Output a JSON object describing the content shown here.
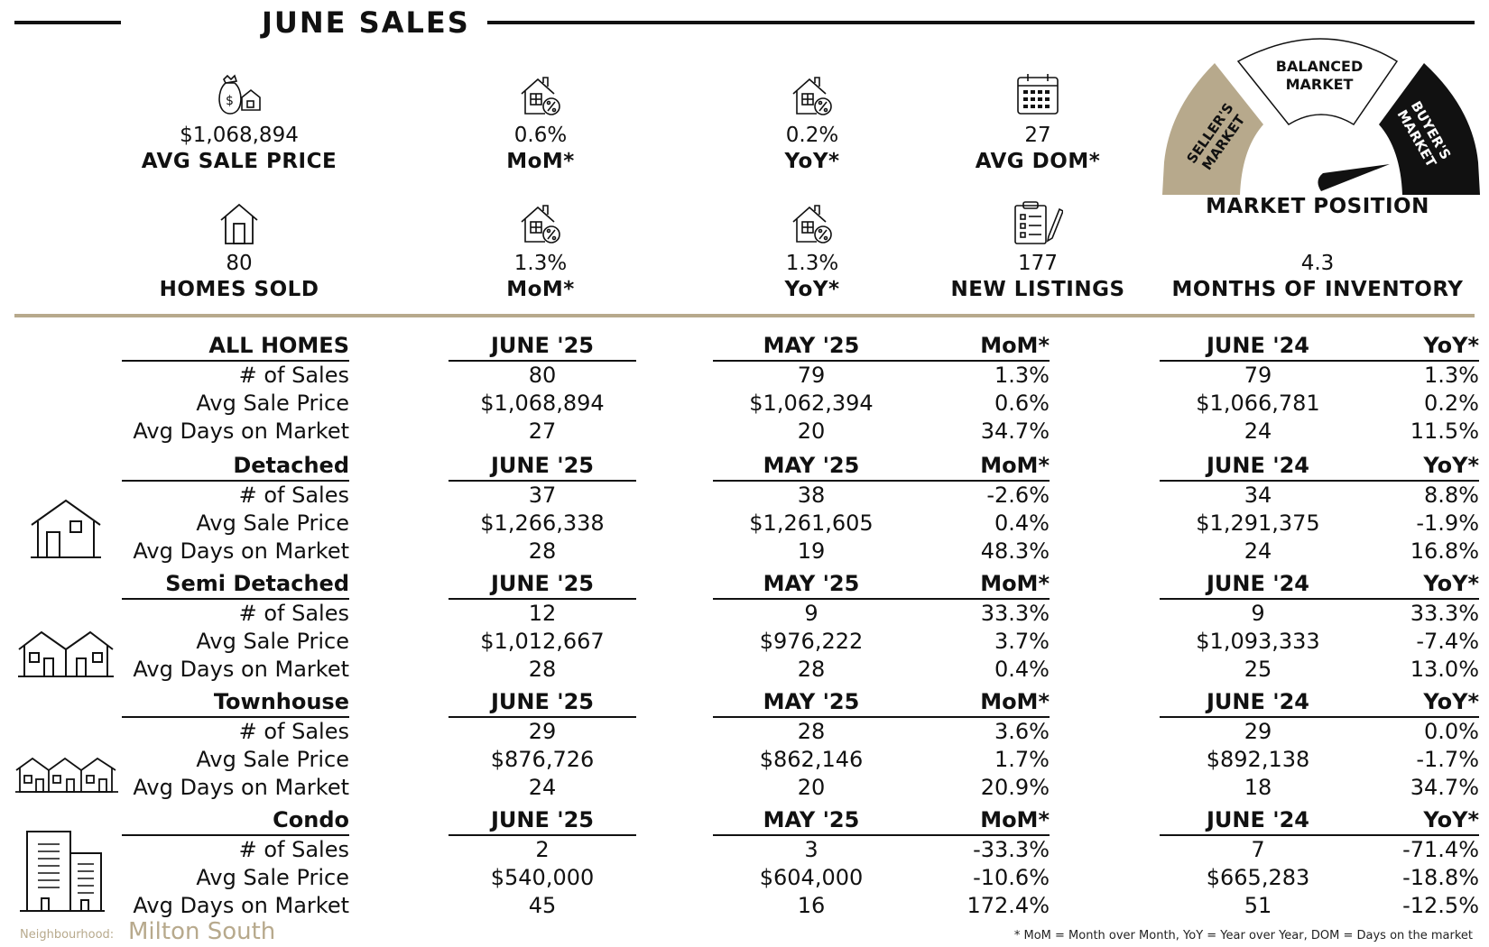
{
  "header": {
    "title": "JUNE SALES"
  },
  "kpis": {
    "avg_sale_price": {
      "value": "$1,068,894",
      "label": "AVG SALE PRICE"
    },
    "price_mom": {
      "value": "0.6%",
      "label": "MoM*"
    },
    "price_yoy": {
      "value": "0.2%",
      "label": "YoY*"
    },
    "avg_dom": {
      "value": "27",
      "label": "AVG DOM*"
    },
    "homes_sold": {
      "value": "80",
      "label": "HOMES SOLD"
    },
    "sold_mom": {
      "value": "1.3%",
      "label": "MoM*"
    },
    "sold_yoy": {
      "value": "1.3%",
      "label": "YoY*"
    },
    "new_listings": {
      "value": "177",
      "label": "NEW LISTINGS"
    },
    "months_inventory": {
      "value": "4.3",
      "label": "MONTHS OF INVENTORY"
    }
  },
  "gauge": {
    "title": "MARKET POSITION",
    "sellers": "SELLER'S MARKET",
    "sellers_l1": "SELLER'S",
    "sellers_l2": "MARKET",
    "balanced_l1": "BALANCED",
    "balanced_l2": "MARKET",
    "buyers_l1": "BUYER'S",
    "buyers_l2": "MARKET",
    "colors": {
      "sellers": "#b7a98c",
      "buyers": "#111111",
      "balanced": "#ffffff"
    }
  },
  "table": {
    "col_headers": {
      "cur": "JUNE '25",
      "prev": "MAY '25",
      "mom": "MoM*",
      "last_year": "JUNE '24",
      "yoy": "YoY*"
    },
    "row_labels": [
      "# of Sales",
      "Avg Sale Price",
      "Avg Days on Market"
    ],
    "sections": [
      {
        "name": "ALL HOMES",
        "icon": "none",
        "rows": [
          [
            "80",
            "79",
            "1.3%",
            "79",
            "1.3%"
          ],
          [
            "$1,068,894",
            "$1,062,394",
            "0.6%",
            "$1,066,781",
            "0.2%"
          ],
          [
            "27",
            "20",
            "34.7%",
            "24",
            "11.5%"
          ]
        ]
      },
      {
        "name": "Detached",
        "icon": "detached-house-icon",
        "rows": [
          [
            "37",
            "38",
            "-2.6%",
            "34",
            "8.8%"
          ],
          [
            "$1,266,338",
            "$1,261,605",
            "0.4%",
            "$1,291,375",
            "-1.9%"
          ],
          [
            "28",
            "19",
            "48.3%",
            "24",
            "16.8%"
          ]
        ]
      },
      {
        "name": "Semi Detached",
        "icon": "semi-detached-house-icon",
        "rows": [
          [
            "12",
            "9",
            "33.3%",
            "9",
            "33.3%"
          ],
          [
            "$1,012,667",
            "$976,222",
            "3.7%",
            "$1,093,333",
            "-7.4%"
          ],
          [
            "28",
            "28",
            "0.4%",
            "25",
            "13.0%"
          ]
        ]
      },
      {
        "name": "Townhouse",
        "icon": "townhouse-icon",
        "rows": [
          [
            "29",
            "28",
            "3.6%",
            "29",
            "0.0%"
          ],
          [
            "$876,726",
            "$862,146",
            "1.7%",
            "$892,138",
            "-1.7%"
          ],
          [
            "24",
            "20",
            "20.9%",
            "18",
            "34.7%"
          ]
        ]
      },
      {
        "name": "Condo",
        "icon": "condo-building-icon",
        "rows": [
          [
            "2",
            "3",
            "-33.3%",
            "7",
            "-71.4%"
          ],
          [
            "$540,000",
            "$604,000",
            "-10.6%",
            "$665,283",
            "-18.8%"
          ],
          [
            "45",
            "16",
            "172.4%",
            "51",
            "-12.5%"
          ]
        ]
      }
    ]
  },
  "footer": {
    "neighbourhood_label": "Neighbourhood:",
    "neighbourhood_name": "Milton South",
    "note": "* MoM = Month over Month, YoY = Year over Year, DOM = Days on the market"
  }
}
